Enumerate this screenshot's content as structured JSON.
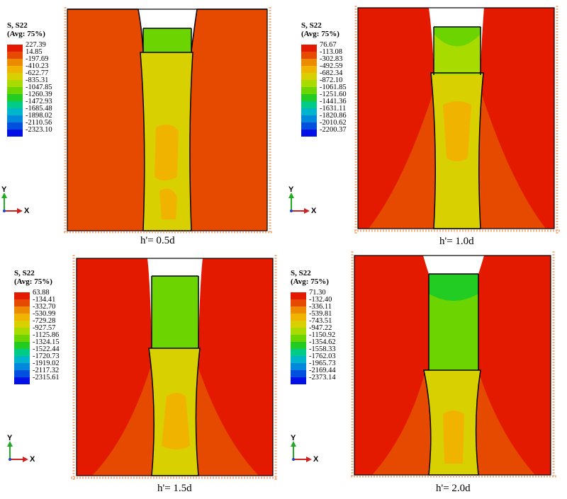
{
  "legend": {
    "title_line1": "S, S22",
    "title_line2": "(Avg: 75%)",
    "colors": [
      "#e31a00",
      "#e64a00",
      "#ec8a00",
      "#f0b400",
      "#d8d000",
      "#a8dc00",
      "#6cd400",
      "#22cc22",
      "#00cc88",
      "#00b4cc",
      "#0088dd",
      "#0050e0",
      "#0010e6"
    ]
  },
  "axes": {
    "y_label": "Y",
    "x_label": "X"
  },
  "panels": [
    {
      "caption": "h'= 0.5d",
      "legend_values": [
        "227.39",
        "14.85",
        "-197.69",
        "-410.23",
        "-622.77",
        "-835.31",
        "-1047.85",
        "-1260.39",
        "-1472.93",
        "-1685.48",
        "-1898.02",
        "-2110.56",
        "-2323.10"
      ]
    },
    {
      "caption": "h'= 1.0d",
      "legend_values": [
        "76.67",
        "-113.08",
        "-302.83",
        "-492.59",
        "-682.34",
        "-872.10",
        "-1061.85",
        "-1251.60",
        "-1441.36",
        "-1631.11",
        "-1820.86",
        "-2010.62",
        "-2200.37"
      ]
    },
    {
      "caption": "h'= 1.5d",
      "legend_values": [
        "63.88",
        "-134.41",
        "-332.70",
        "-530.99",
        "-729.28",
        "-927.57",
        "-1125.86",
        "-1324.15",
        "-1522.44",
        "-1720.73",
        "-1919.02",
        "-2117.32",
        "-2315.61"
      ]
    },
    {
      "caption": "h'= 2.0d",
      "legend_values": [
        "71.30",
        "-132.40",
        "-336.11",
        "-539.81",
        "-743.51",
        "-947.22",
        "-1150.92",
        "-1354.62",
        "-1558.33",
        "-1762.03",
        "-1965.73",
        "-2169.44",
        "-2373.14"
      ]
    }
  ]
}
